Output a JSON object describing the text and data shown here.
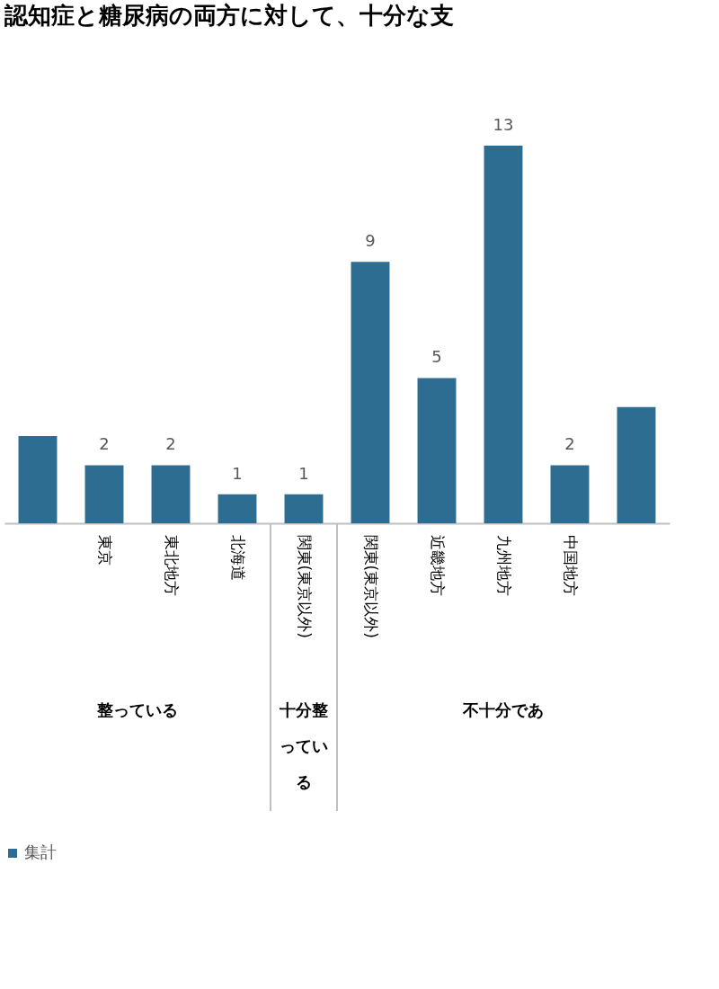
{
  "chart_data": {
    "type": "bar",
    "title": "認知症と糖尿病の両方に対して、十分な支",
    "categories": [
      null,
      "東京",
      "東北地方",
      "北海道",
      "関東(東京以外)",
      "関東(東京以外)",
      "近畿地方",
      "九州地方",
      "中国地方",
      null
    ],
    "series": [
      {
        "name": "集計",
        "color": "#2e6d92",
        "values": [
          3,
          2,
          2,
          1,
          1,
          9,
          5,
          13,
          2,
          4
        ],
        "value_labels": [
          null,
          "2",
          "2",
          "1",
          "1",
          "9",
          "5",
          "13",
          "2",
          null
        ]
      }
    ],
    "annotations": [
      "整っている",
      "十分整っている",
      "不十分であ"
    ],
    "grid": false,
    "legend": "bottom"
  }
}
